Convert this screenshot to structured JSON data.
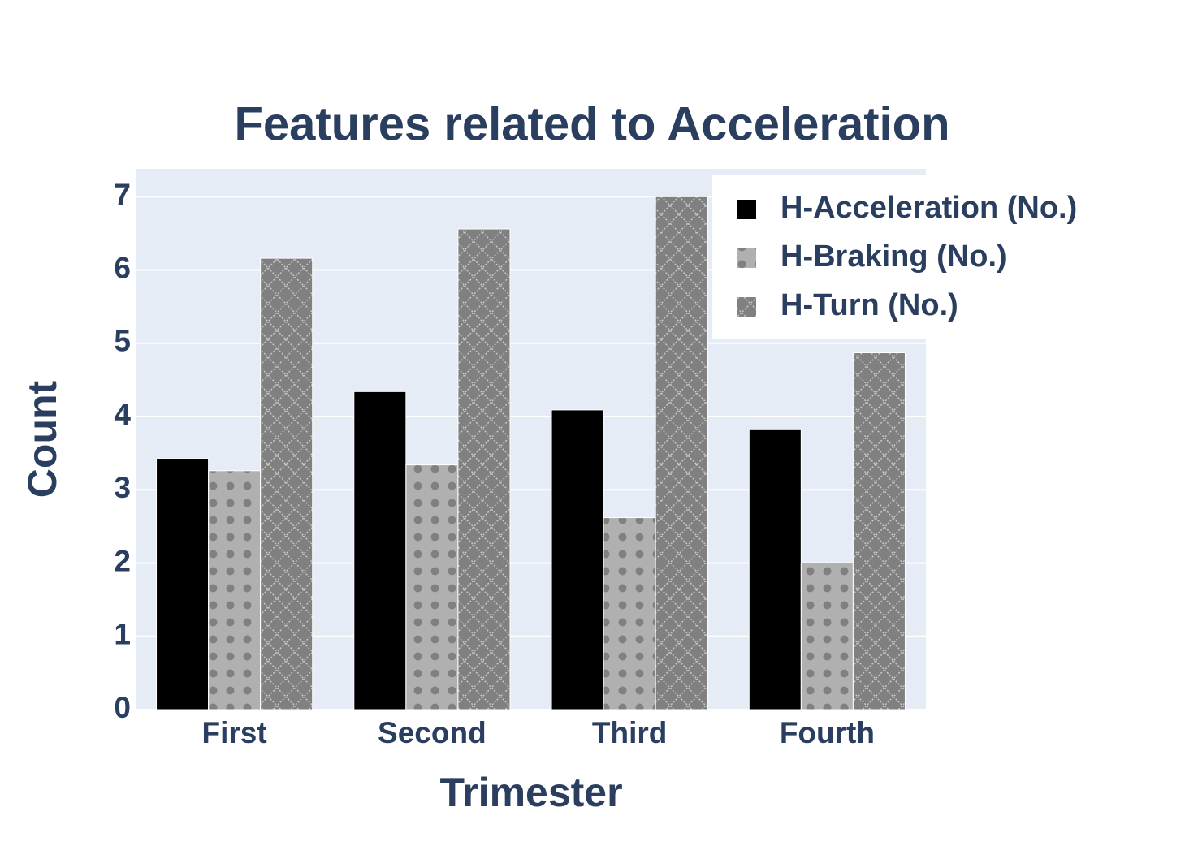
{
  "chart_data": {
    "type": "bar",
    "title": "Features related to Acceleration",
    "x_label": "Trimester",
    "y_label": "Count",
    "categories": [
      "First",
      "Second",
      "Third",
      "Fourth"
    ],
    "series": [
      {
        "name": "H-Acceleration (No.)",
        "color": "#000000",
        "pattern": "solid",
        "values": [
          3.43,
          4.34,
          4.09,
          3.82
        ]
      },
      {
        "name": "H-Braking (No.)",
        "color": "#b0b0b0",
        "pattern": "dots",
        "values": [
          3.26,
          3.34,
          2.62,
          2.0
        ]
      },
      {
        "name": "H-Turn (No.)",
        "color": "#808080",
        "pattern": "crosshatch",
        "values": [
          6.16,
          6.56,
          7.0,
          4.87
        ]
      }
    ],
    "ylim": [
      0,
      7.38
    ],
    "yticks": [
      0,
      1,
      2,
      3,
      4,
      5,
      6,
      7
    ],
    "grid": true,
    "legend": "top right"
  }
}
